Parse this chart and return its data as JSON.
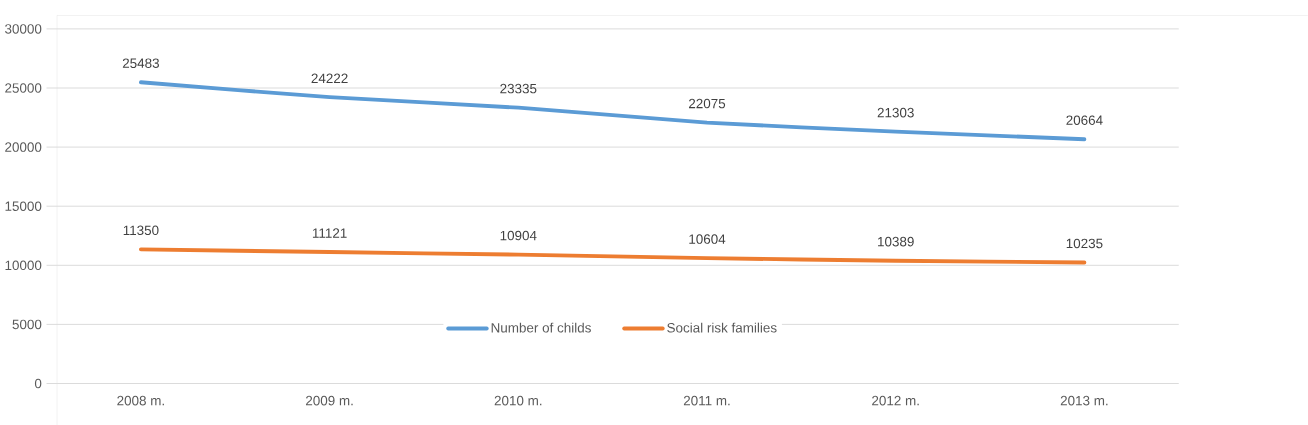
{
  "chart_data": {
    "type": "line",
    "categories": [
      "2008 m.",
      "2009 m.",
      "2010 m.",
      "2011 m.",
      "2012 m.",
      "2013 m."
    ],
    "series": [
      {
        "name": "Number of childs",
        "color": "#5b9bd5",
        "values": [
          25483,
          24222,
          23335,
          22075,
          21303,
          20664
        ]
      },
      {
        "name": "Social risk families",
        "color": "#ed7d31",
        "values": [
          11350,
          11121,
          10904,
          10604,
          10389,
          10235
        ]
      }
    ],
    "ylim": [
      0,
      30000
    ],
    "yticks": [
      0,
      5000,
      10000,
      15000,
      20000,
      25000,
      30000
    ],
    "grid": "y",
    "legend": "bottom",
    "data_labels": true,
    "marker": "none",
    "line_style": "solid"
  }
}
